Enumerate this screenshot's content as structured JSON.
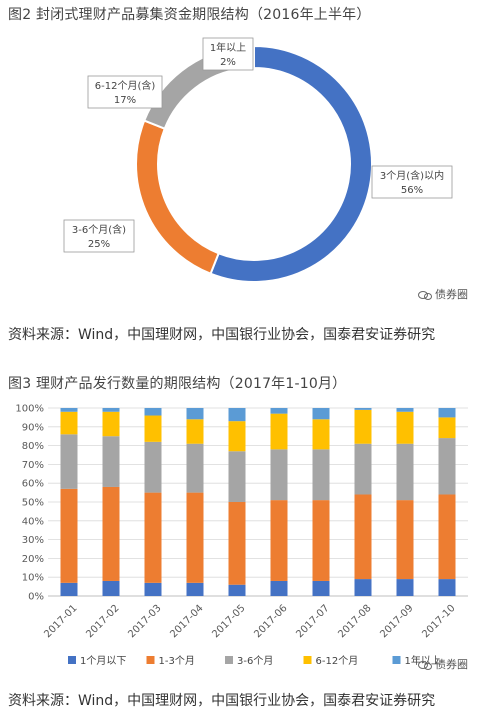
{
  "figure2": {
    "title": "图2  封闭式理财产品募集资金期限结构（2016年上半年）",
    "source": "资料来源：Wind，中国理财网，中国银行业协会，国泰君安证券研究",
    "watermark": "债券圈"
  },
  "figure3": {
    "title": "图3  理财产品发行数量的期限结构（2017年1-10月）",
    "source": "资料来源：Wind，中国理财网，中国银行业协会，国泰君安证券研究",
    "watermark": "债券圈"
  },
  "colors": {
    "blue": "#4472c4",
    "orange": "#ed7d31",
    "gray": "#a5a5a5",
    "yellow": "#ffc000",
    "lightblue": "#5b9bd5"
  },
  "chart_data": [
    {
      "type": "pie",
      "subtype": "donut",
      "slices": [
        {
          "label": "3个月(含)以内",
          "value": 56,
          "pct_label": "56%",
          "color": "#4472c4"
        },
        {
          "label": "3-6个月(含)",
          "value": 25,
          "pct_label": "25%",
          "color": "#ed7d31"
        },
        {
          "label": "6-12个月(含)",
          "value": 17,
          "pct_label": "17%",
          "color": "#a5a5a5"
        },
        {
          "label": "1年以上",
          "value": 2,
          "pct_label": "2%",
          "color": "#ffc000"
        }
      ]
    },
    {
      "type": "bar",
      "subtype": "stacked-100",
      "categories": [
        "2017-01",
        "2017-02",
        "2017-03",
        "2017-04",
        "2017-05",
        "2017-06",
        "2017-07",
        "2017-08",
        "2017-09",
        "2017-10"
      ],
      "ylim": [
        0,
        100
      ],
      "yticks": [
        "0%",
        "10%",
        "20%",
        "30%",
        "40%",
        "50%",
        "60%",
        "70%",
        "80%",
        "90%",
        "100%"
      ],
      "legend_position": "bottom",
      "series": [
        {
          "name": "1个月以下",
          "color": "#4472c4",
          "values": [
            7,
            8,
            7,
            7,
            6,
            8,
            8,
            9,
            9,
            9
          ]
        },
        {
          "name": "1-3个月",
          "color": "#ed7d31",
          "values": [
            50,
            50,
            48,
            48,
            44,
            43,
            43,
            45,
            42,
            45
          ]
        },
        {
          "name": "3-6个月",
          "color": "#a5a5a5",
          "values": [
            29,
            27,
            27,
            26,
            27,
            27,
            27,
            27,
            30,
            30
          ]
        },
        {
          "name": "6-12个月",
          "color": "#ffc000",
          "values": [
            12,
            13,
            14,
            13,
            16,
            19,
            16,
            18,
            17,
            11
          ]
        },
        {
          "name": "1年以上",
          "color": "#5b9bd5",
          "values": [
            2,
            2,
            4,
            6,
            7,
            3,
            6,
            1,
            2,
            5
          ]
        }
      ]
    }
  ]
}
